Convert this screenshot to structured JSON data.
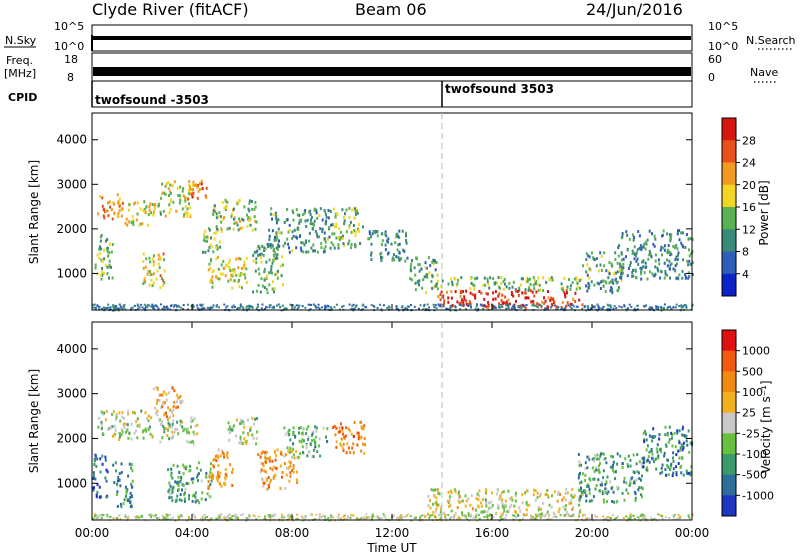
{
  "header": {
    "station": "Clyde River (fitACF)",
    "beam": "Beam 06",
    "date": "24/Jun/2016"
  },
  "nsky_panel": {
    "left_label": "N.Sky",
    "left_ticks": [
      "10^5",
      "10^0"
    ],
    "right_ticks": [
      "10^5",
      "10^0"
    ],
    "right_label": "N.Search"
  },
  "freq_panel": {
    "left_label_1": "Freq.",
    "left_label_2": "[MHz]",
    "left_ticks": [
      "18",
      "8"
    ],
    "right_ticks": [
      "60",
      "0"
    ],
    "right_label": "Nave"
  },
  "cpid_panel": {
    "label": "CPID",
    "entries": [
      {
        "name": "twofsound -3503",
        "start_hour": 0
      },
      {
        "name": "twofsound 3503",
        "start_hour": 14
      }
    ]
  },
  "chart_data": [
    {
      "type": "heatmap",
      "name": "power",
      "ylabel": "Slant Range [km]",
      "yticks": [
        "4000",
        "3000",
        "2000",
        "1000"
      ],
      "ylim": [
        180,
        4600
      ],
      "xlim_hours": [
        0,
        24
      ],
      "colorbar": {
        "label": "Power [dB]",
        "ticks": [
          "28",
          "24",
          "20",
          "16",
          "12",
          "8",
          "4"
        ],
        "range": [
          0,
          32
        ],
        "colors": [
          "#0b22c8",
          "#2e5fb8",
          "#3a8a7a",
          "#59b152",
          "#f2d623",
          "#f29a20",
          "#e8501c",
          "#d6170f"
        ]
      },
      "regions": [
        {
          "t0": 0.2,
          "t1": 1.2,
          "r0": 2200,
          "r1": 2800,
          "level": 0.72
        },
        {
          "t0": 0.1,
          "t1": 0.8,
          "r0": 900,
          "r1": 1900,
          "level": 0.42
        },
        {
          "t0": 1.3,
          "t1": 2.5,
          "r0": 2100,
          "r1": 2700,
          "level": 0.55
        },
        {
          "t0": 2.0,
          "t1": 2.9,
          "r0": 700,
          "r1": 1500,
          "level": 0.6
        },
        {
          "t0": 2.6,
          "t1": 4.0,
          "r0": 2300,
          "r1": 3100,
          "level": 0.5
        },
        {
          "t0": 3.8,
          "t1": 4.6,
          "r0": 2700,
          "r1": 3150,
          "level": 0.8
        },
        {
          "t0": 4.4,
          "t1": 5.2,
          "r0": 1500,
          "r1": 2100,
          "level": 0.45
        },
        {
          "t0": 4.6,
          "t1": 6.2,
          "r0": 700,
          "r1": 1400,
          "level": 0.55
        },
        {
          "t0": 4.8,
          "t1": 6.6,
          "r0": 2000,
          "r1": 2700,
          "level": 0.48
        },
        {
          "t0": 6.4,
          "t1": 7.6,
          "r0": 600,
          "r1": 1700,
          "level": 0.4
        },
        {
          "t0": 7.0,
          "t1": 9.6,
          "r0": 1500,
          "r1": 2500,
          "level": 0.35
        },
        {
          "t0": 9.6,
          "t1": 10.8,
          "r0": 1600,
          "r1": 2500,
          "level": 0.45
        },
        {
          "t0": 11.0,
          "t1": 12.6,
          "r0": 1300,
          "r1": 2000,
          "level": 0.3
        },
        {
          "t0": 12.6,
          "t1": 13.8,
          "r0": 600,
          "r1": 1400,
          "level": 0.38
        },
        {
          "t0": 13.6,
          "t1": 19.6,
          "r0": 650,
          "r1": 950,
          "level": 0.45
        },
        {
          "t0": 13.8,
          "t1": 19.6,
          "r0": 250,
          "r1": 650,
          "level": 0.9
        },
        {
          "t0": 19.6,
          "t1": 21.2,
          "r0": 600,
          "r1": 1500,
          "level": 0.35
        },
        {
          "t0": 21.0,
          "t1": 24.0,
          "r0": 900,
          "r1": 2000,
          "level": 0.3
        }
      ]
    },
    {
      "type": "heatmap",
      "name": "velocity",
      "ylabel": "Slant Range [km]",
      "yticks": [
        "4000",
        "3000",
        "2000",
        "1000"
      ],
      "ylim": [
        180,
        4600
      ],
      "xlim_hours": [
        0,
        24
      ],
      "xticks": [
        "00:00",
        "04:00",
        "08:00",
        "12:00",
        "16:00",
        "20:00",
        "00:00"
      ],
      "xlabel": "Time UT",
      "colorbar": {
        "label": "Velocity [m s⁻¹]",
        "ticks": [
          "1000",
          "500",
          "100",
          "25",
          "-25",
          "-100",
          "-500",
          "-1000"
        ],
        "colors": [
          "#1d35c0",
          "#2d6f9a",
          "#3a9a6a",
          "#68c040",
          "#c8c8c8",
          "#f2b020",
          "#f28a10",
          "#f25a10",
          "#e01010"
        ]
      },
      "regions": [
        {
          "t0": 0.2,
          "t1": 2.4,
          "r0": 2000,
          "r1": 2650,
          "level": 0.44
        },
        {
          "t0": 0.0,
          "t1": 0.6,
          "r0": 700,
          "r1": 1700,
          "level": 0.15
        },
        {
          "t0": 0.8,
          "t1": 1.6,
          "r0": 500,
          "r1": 1500,
          "level": 0.25
        },
        {
          "t0": 2.4,
          "t1": 3.6,
          "r0": 2500,
          "r1": 3200,
          "level": 0.62
        },
        {
          "t0": 2.6,
          "t1": 4.2,
          "r0": 1900,
          "r1": 2500,
          "level": 0.44
        },
        {
          "t0": 3.0,
          "t1": 4.8,
          "r0": 600,
          "r1": 1500,
          "level": 0.3
        },
        {
          "t0": 4.6,
          "t1": 5.6,
          "r0": 900,
          "r1": 1800,
          "level": 0.7
        },
        {
          "t0": 5.4,
          "t1": 6.6,
          "r0": 1900,
          "r1": 2500,
          "level": 0.44
        },
        {
          "t0": 6.6,
          "t1": 8.2,
          "r0": 900,
          "r1": 1800,
          "level": 0.68
        },
        {
          "t0": 7.6,
          "t1": 9.4,
          "r0": 1600,
          "r1": 2300,
          "level": 0.35
        },
        {
          "t0": 9.6,
          "t1": 10.9,
          "r0": 1700,
          "r1": 2400,
          "level": 0.72
        },
        {
          "t0": 13.4,
          "t1": 19.6,
          "r0": 300,
          "r1": 900,
          "level": 0.5
        },
        {
          "t0": 19.4,
          "t1": 22.0,
          "r0": 600,
          "r1": 1700,
          "level": 0.3
        },
        {
          "t0": 22.0,
          "t1": 24.0,
          "r0": 1200,
          "r1": 2300,
          "level": 0.22
        }
      ]
    }
  ]
}
